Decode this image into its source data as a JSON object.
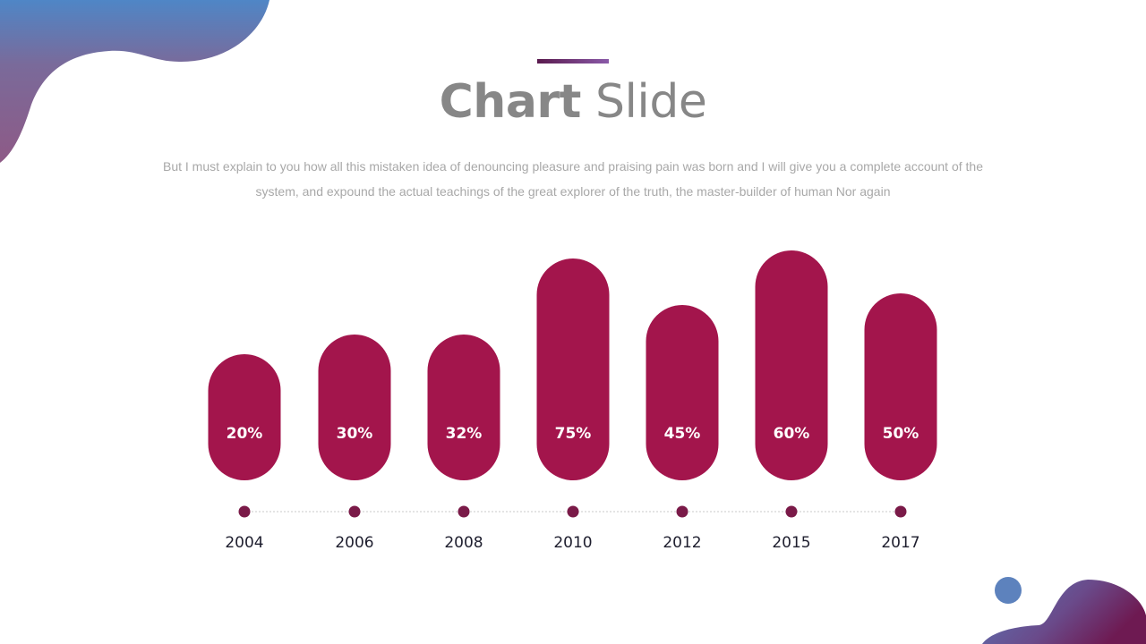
{
  "header": {
    "title_bold": "Chart",
    "title_light": "Slide",
    "subtitle": "But I must explain to you how all this mistaken idea of denouncing pleasure and praising pain was born and I will give you a complete account of the system,  and expound the actual teachings of the great explorer of the truth, the master-builder of human Nor again"
  },
  "colors": {
    "bar_top": "#58154c",
    "bar_bottom": "#a3154c",
    "dot": "#7a1a48",
    "title": "#878787",
    "blob_blue": "#4f86c6",
    "blob_purple": "#8a5a8a"
  },
  "chart_data": {
    "type": "bar",
    "categories": [
      "2004",
      "2006",
      "2008",
      "2010",
      "2012",
      "2015",
      "2017"
    ],
    "values": [
      20,
      30,
      32,
      75,
      45,
      60,
      50
    ],
    "data_labels": [
      "20%",
      "30%",
      "32%",
      "75%",
      "45%",
      "60%",
      "50%"
    ],
    "title": "",
    "xlabel": "",
    "ylabel": "",
    "grid": false,
    "legend": "none"
  }
}
